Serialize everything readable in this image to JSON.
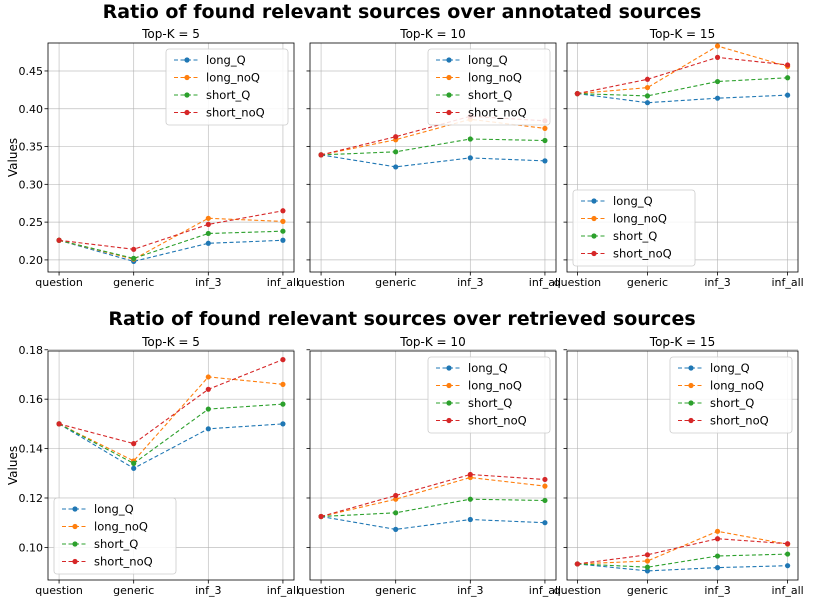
{
  "figure": {
    "ylabel": "Values",
    "series_colors": {
      "long_Q": "#1f77b4",
      "long_noQ": "#ff7f0e",
      "short_Q": "#2ca02c",
      "short_noQ": "#d62728"
    }
  },
  "chart_data": [
    {
      "group_title": "Ratio of found relevant sources over annotated sources",
      "subplots": [
        {
          "type": "line",
          "title": "Top-K = 5",
          "categories": [
            "question",
            "generic",
            "inf_3",
            "inf_all"
          ],
          "ylim": [
            0.184,
            0.487
          ],
          "yticks": [
            0.2,
            0.25,
            0.3,
            0.35,
            0.4,
            0.45
          ],
          "ytick_labels": [
            "0.20",
            "0.25",
            "0.30",
            "0.35",
            "0.40",
            "0.45"
          ],
          "grid": true,
          "legend_position": "upper-right",
          "series": [
            {
              "name": "long_Q",
              "values": [
                0.226,
                0.198,
                0.222,
                0.226
              ]
            },
            {
              "name": "long_noQ",
              "values": [
                0.226,
                0.201,
                0.255,
                0.251
              ]
            },
            {
              "name": "short_Q",
              "values": [
                0.226,
                0.202,
                0.235,
                0.238
              ]
            },
            {
              "name": "short_noQ",
              "values": [
                0.226,
                0.214,
                0.247,
                0.265
              ]
            }
          ]
        },
        {
          "type": "line",
          "title": "Top-K = 10",
          "categories": [
            "question",
            "generic",
            "inf_3",
            "inf_all"
          ],
          "ylim": [
            0.184,
            0.487
          ],
          "yticks": [
            0.2,
            0.25,
            0.3,
            0.35,
            0.4,
            0.45
          ],
          "ytick_labels": [],
          "grid": true,
          "legend_position": "upper-right",
          "series": [
            {
              "name": "long_Q",
              "values": [
                0.339,
                0.323,
                0.335,
                0.331
              ]
            },
            {
              "name": "long_noQ",
              "values": [
                0.339,
                0.359,
                0.386,
                0.374
              ]
            },
            {
              "name": "short_Q",
              "values": [
                0.339,
                0.343,
                0.36,
                0.358
              ]
            },
            {
              "name": "short_noQ",
              "values": [
                0.339,
                0.363,
                0.39,
                0.384
              ]
            }
          ]
        },
        {
          "type": "line",
          "title": "Top-K = 15",
          "categories": [
            "question",
            "generic",
            "inf_3",
            "inf_all"
          ],
          "ylim": [
            0.184,
            0.487
          ],
          "yticks": [
            0.2,
            0.25,
            0.3,
            0.35,
            0.4,
            0.45
          ],
          "ytick_labels": [],
          "grid": true,
          "legend_position": "lower-left",
          "series": [
            {
              "name": "long_Q",
              "values": [
                0.42,
                0.408,
                0.414,
                0.418
              ]
            },
            {
              "name": "long_noQ",
              "values": [
                0.42,
                0.428,
                0.483,
                0.456
              ]
            },
            {
              "name": "short_Q",
              "values": [
                0.42,
                0.417,
                0.436,
                0.441
              ]
            },
            {
              "name": "short_noQ",
              "values": [
                0.42,
                0.439,
                0.468,
                0.458
              ]
            }
          ]
        }
      ]
    },
    {
      "group_title": "Ratio of found relevant sources over retrieved sources",
      "subplots": [
        {
          "type": "line",
          "title": "Top-K = 5",
          "categories": [
            "question",
            "generic",
            "inf_3",
            "inf_all"
          ],
          "ylim": [
            0.0868,
            0.1795
          ],
          "yticks": [
            0.1,
            0.12,
            0.14,
            0.16,
            0.18
          ],
          "ytick_labels": [
            "0.10",
            "0.12",
            "0.14",
            "0.16",
            "0.18"
          ],
          "grid": true,
          "legend_position": "lower-left",
          "series": [
            {
              "name": "long_Q",
              "values": [
                0.15,
                0.132,
                0.148,
                0.15
              ]
            },
            {
              "name": "long_noQ",
              "values": [
                0.15,
                0.135,
                0.169,
                0.166
              ]
            },
            {
              "name": "short_Q",
              "values": [
                0.15,
                0.134,
                0.156,
                0.158
              ]
            },
            {
              "name": "short_noQ",
              "values": [
                0.15,
                0.142,
                0.164,
                0.176
              ]
            }
          ]
        },
        {
          "type": "line",
          "title": "Top-K = 10",
          "categories": [
            "question",
            "generic",
            "inf_3",
            "inf_all"
          ],
          "ylim": [
            0.0868,
            0.1795
          ],
          "yticks": [
            0.1,
            0.12,
            0.14,
            0.16,
            0.18
          ],
          "ytick_labels": [],
          "grid": true,
          "legend_position": "upper-right",
          "series": [
            {
              "name": "long_Q",
              "values": [
                0.1125,
                0.1073,
                0.1113,
                0.11
              ]
            },
            {
              "name": "long_noQ",
              "values": [
                0.1125,
                0.1195,
                0.1283,
                0.1248
              ]
            },
            {
              "name": "short_Q",
              "values": [
                0.1125,
                0.114,
                0.1195,
                0.119
              ]
            },
            {
              "name": "short_noQ",
              "values": [
                0.1125,
                0.121,
                0.1295,
                0.1275
              ]
            }
          ]
        },
        {
          "type": "line",
          "title": "Top-K = 15",
          "categories": [
            "question",
            "generic",
            "inf_3",
            "inf_all"
          ],
          "ylim": [
            0.0868,
            0.1795
          ],
          "yticks": [
            0.1,
            0.12,
            0.14,
            0.16,
            0.18
          ],
          "ytick_labels": [],
          "grid": true,
          "legend_position": "upper-right",
          "series": [
            {
              "name": "long_Q",
              "values": [
                0.0933,
                0.0905,
                0.0918,
                0.0926
              ]
            },
            {
              "name": "long_noQ",
              "values": [
                0.0933,
                0.0945,
                0.1065,
                0.1013
              ]
            },
            {
              "name": "short_Q",
              "values": [
                0.0933,
                0.092,
                0.0965,
                0.0973
              ]
            },
            {
              "name": "short_noQ",
              "values": [
                0.0933,
                0.097,
                0.1035,
                0.1015
              ]
            }
          ]
        }
      ]
    }
  ]
}
